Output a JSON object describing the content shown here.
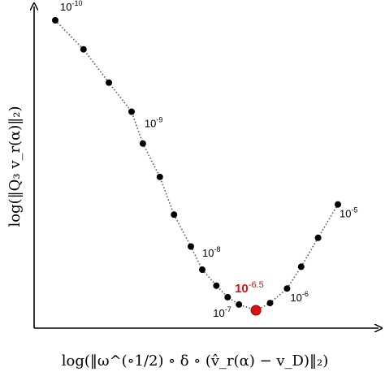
{
  "chart_data": {
    "type": "scatter",
    "style": "dotted line with markers",
    "xlabel": "log(‖ω^(∘1/2) ∘ δ ∘ (v̂_r(α) − v_D)‖₂)",
    "ylabel": "log(‖Q₃ v_r(α)‖₂)",
    "grid": false,
    "axis_ticks": false,
    "points": [
      {
        "x": 0.0,
        "y": 1.0
      },
      {
        "x": 0.1,
        "y": 0.9
      },
      {
        "x": 0.19,
        "y": 0.785
      },
      {
        "x": 0.27,
        "y": 0.685
      },
      {
        "x": 0.31,
        "y": 0.575
      },
      {
        "x": 0.37,
        "y": 0.46
      },
      {
        "x": 0.42,
        "y": 0.33
      },
      {
        "x": 0.48,
        "y": 0.22
      },
      {
        "x": 0.52,
        "y": 0.14
      },
      {
        "x": 0.57,
        "y": 0.085
      },
      {
        "x": 0.61,
        "y": 0.045
      },
      {
        "x": 0.65,
        "y": 0.02
      },
      {
        "x": 0.71,
        "y": 0.0
      },
      {
        "x": 0.76,
        "y": 0.025
      },
      {
        "x": 0.82,
        "y": 0.075
      },
      {
        "x": 0.87,
        "y": 0.15
      },
      {
        "x": 0.93,
        "y": 0.25
      },
      {
        "x": 1.0,
        "y": 0.365
      }
    ],
    "highlight_index": 12,
    "marker_color": "#000000",
    "line_color": "#555555",
    "highlight_color": "#e01010",
    "annotations": [
      {
        "base": "10",
        "exp": "-10",
        "point": 0
      },
      {
        "base": "10",
        "exp": "-9",
        "point": 4
      },
      {
        "base": "10",
        "exp": "-8",
        "point": 8
      },
      {
        "base": "10",
        "exp": "-7",
        "point": 10
      },
      {
        "base": "10",
        "exp": "-6.5",
        "point": 12,
        "highlight": true
      },
      {
        "base": "10",
        "exp": "-6",
        "point": 14
      },
      {
        "base": "10",
        "exp": "-5",
        "point": 17
      }
    ]
  }
}
